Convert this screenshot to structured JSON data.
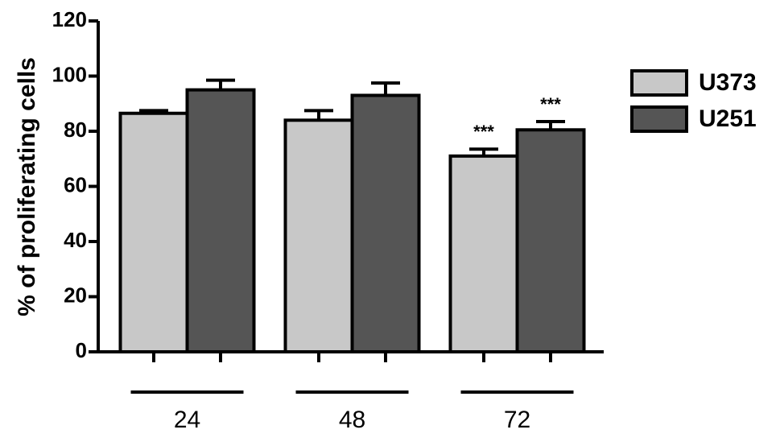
{
  "chart_data": {
    "type": "bar",
    "ylabel": "% of proliferating cells",
    "categories": [
      "24",
      "48",
      "72"
    ],
    "series": [
      {
        "name": "U373",
        "color": "#c8c8c8",
        "values": [
          86.5,
          84,
          71
        ],
        "errors": [
          1,
          3.5,
          2.5
        ],
        "significance": [
          null,
          null,
          "***"
        ]
      },
      {
        "name": "U251",
        "color": "#555555",
        "values": [
          95,
          93,
          80.5
        ],
        "errors": [
          3.5,
          4.5,
          3
        ],
        "significance": [
          null,
          null,
          "***"
        ]
      }
    ],
    "ylim": [
      0,
      120
    ],
    "yticks": [
      0,
      20,
      40,
      60,
      80,
      100,
      120
    ],
    "legend": "right"
  }
}
